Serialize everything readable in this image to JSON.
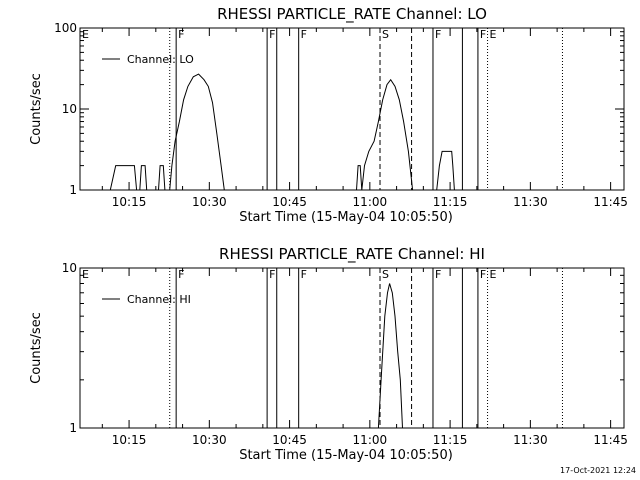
{
  "stamp": "17-Oct-2021 12:24",
  "colors": {
    "background": "#ffffff",
    "foreground": "#000000"
  },
  "chart_data": [
    {
      "type": "line",
      "title": "RHESSI PARTICLE_RATE Channel: LO",
      "xlabel": "Start Time (15-May-04 10:05:50)",
      "ylabel": "Counts/sec",
      "yscale": "log",
      "ylim": [
        1,
        100
      ],
      "y_ticks": [
        "1",
        "10",
        "100"
      ],
      "x_range_min": [
        5.83,
        47.5
      ],
      "x_ticks": [
        {
          "min": 15,
          "label": "10:15"
        },
        {
          "min": 30,
          "label": "10:30"
        },
        {
          "min": 45,
          "label": "10:45"
        },
        {
          "min": 60,
          "label": "11:00"
        },
        {
          "min": 75,
          "label": "11:15"
        },
        {
          "min": 90,
          "label": "11:30"
        },
        {
          "min": 105,
          "label": "11:45"
        }
      ],
      "legend": {
        "position": "top-left",
        "entries": [
          "Channel: LO"
        ]
      },
      "series": [
        {
          "name": "Channel: LO",
          "segments": [
            [
              [
                11.5,
                1
              ],
              [
                12.5,
                2
              ],
              [
                16,
                2
              ],
              [
                16.4,
                1
              ],
              [
                17,
                1
              ],
              [
                17.3,
                2
              ],
              [
                18,
                2
              ],
              [
                18.3,
                1
              ]
            ],
            [
              [
                20.5,
                1
              ],
              [
                20.8,
                2
              ],
              [
                21.4,
                2
              ],
              [
                21.7,
                1
              ],
              [
                22.6,
                1
              ],
              [
                23,
                2
              ],
              [
                23.6,
                4
              ],
              [
                24.4,
                7
              ],
              [
                25.2,
                13
              ],
              [
                26,
                19
              ],
              [
                27,
                25
              ],
              [
                28,
                27
              ],
              [
                29,
                23
              ],
              [
                29.8,
                19
              ],
              [
                30.6,
                12
              ],
              [
                31.4,
                5
              ],
              [
                32.2,
                2
              ],
              [
                32.8,
                1
              ]
            ],
            [
              [
                57.5,
                1
              ],
              [
                57.8,
                2
              ],
              [
                58.2,
                2
              ],
              [
                58.5,
                1
              ],
              [
                59,
                2
              ],
              [
                59.8,
                3
              ],
              [
                60.8,
                4
              ],
              [
                61.6,
                7
              ],
              [
                62.4,
                13
              ],
              [
                63.2,
                20
              ],
              [
                63.9,
                23
              ],
              [
                64.7,
                19
              ],
              [
                65.5,
                13
              ],
              [
                66.3,
                7
              ],
              [
                67.2,
                3
              ],
              [
                68,
                1
              ]
            ],
            [
              [
                72.5,
                1
              ],
              [
                73,
                2
              ],
              [
                73.5,
                3
              ],
              [
                75.3,
                3
              ],
              [
                75.5,
                2
              ],
              [
                75.8,
                1
              ]
            ]
          ]
        }
      ],
      "markers": [
        {
          "min": 22.6,
          "style": "dotted",
          "label": ""
        },
        {
          "min": 23.8,
          "style": "solid",
          "label": "F"
        },
        {
          "min": 40.8,
          "style": "solid",
          "label": "F"
        },
        {
          "min": 42.6,
          "style": "solid",
          "label": ""
        },
        {
          "min": 46.7,
          "style": "solid",
          "label": "F"
        },
        {
          "min": 61.9,
          "style": "dashed",
          "label": "S"
        },
        {
          "min": 67.8,
          "style": "dashed",
          "label": ""
        },
        {
          "min": 71.8,
          "style": "solid",
          "label": "F"
        },
        {
          "min": 77.3,
          "style": "solid",
          "label": ""
        },
        {
          "min": 80.2,
          "style": "solid",
          "label": "F"
        },
        {
          "min": 82.0,
          "style": "dotted",
          "label": "E"
        },
        {
          "min": 96.0,
          "style": "dotted",
          "label": ""
        }
      ],
      "corner_flag": "E"
    },
    {
      "type": "line",
      "title": "RHESSI PARTICLE_RATE Channel: HI",
      "xlabel": "Start Time (15-May-04 10:05:50)",
      "ylabel": "Counts/sec",
      "yscale": "log",
      "ylim": [
        1,
        10
      ],
      "y_ticks": [
        "1",
        "10"
      ],
      "x_range_min": [
        5.83,
        47.5
      ],
      "x_ticks": [
        {
          "min": 15,
          "label": "10:15"
        },
        {
          "min": 30,
          "label": "10:30"
        },
        {
          "min": 45,
          "label": "10:45"
        },
        {
          "min": 60,
          "label": "11:00"
        },
        {
          "min": 75,
          "label": "11:15"
        },
        {
          "min": 90,
          "label": "11:30"
        },
        {
          "min": 105,
          "label": "11:45"
        }
      ],
      "legend": {
        "position": "top-left",
        "entries": [
          "Channel: HI"
        ]
      },
      "series": [
        {
          "name": "Channel: HI",
          "segments": [
            [
              [
                61.6,
                1
              ],
              [
                62.1,
                2
              ],
              [
                62.8,
                5
              ],
              [
                63.3,
                7
              ],
              [
                63.7,
                8
              ],
              [
                64.2,
                7
              ],
              [
                64.7,
                5
              ],
              [
                65.2,
                3
              ],
              [
                65.7,
                2
              ],
              [
                66.1,
                1
              ]
            ]
          ]
        }
      ],
      "markers": [
        {
          "min": 22.6,
          "style": "dotted",
          "label": ""
        },
        {
          "min": 23.8,
          "style": "solid",
          "label": "F"
        },
        {
          "min": 40.8,
          "style": "solid",
          "label": "F"
        },
        {
          "min": 42.6,
          "style": "solid",
          "label": ""
        },
        {
          "min": 46.7,
          "style": "solid",
          "label": "F"
        },
        {
          "min": 61.9,
          "style": "dashed",
          "label": "S"
        },
        {
          "min": 67.8,
          "style": "dashed",
          "label": ""
        },
        {
          "min": 71.8,
          "style": "solid",
          "label": "F"
        },
        {
          "min": 77.3,
          "style": "solid",
          "label": ""
        },
        {
          "min": 80.2,
          "style": "solid",
          "label": "F"
        },
        {
          "min": 82.0,
          "style": "dotted",
          "label": "E"
        },
        {
          "min": 96.0,
          "style": "dotted",
          "label": ""
        }
      ],
      "corner_flag": "E"
    }
  ]
}
